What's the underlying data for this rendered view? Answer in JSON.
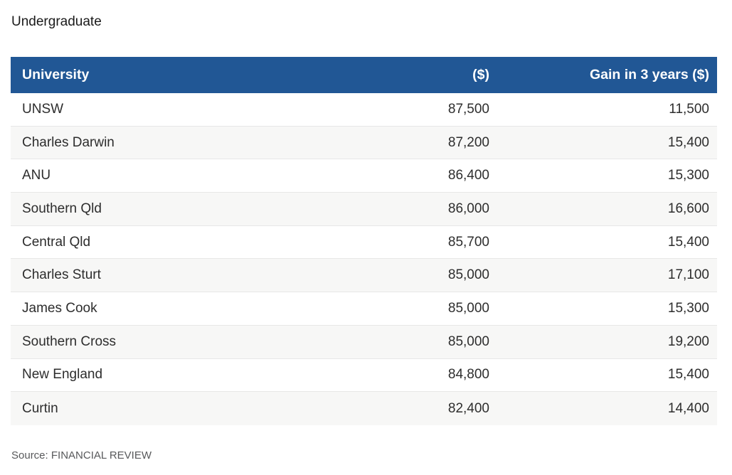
{
  "title": "Undergraduate",
  "source": "Source: FINANCIAL REVIEW",
  "colors": {
    "header_bg": "#215795",
    "header_text": "#ffffff",
    "row_bg": "#ffffff",
    "row_alt_bg": "#f7f7f6",
    "divider": "#e7e7e7",
    "text": "#2d2d2d",
    "title_text": "#1a1a1a",
    "source_text": "#58595b"
  },
  "table": {
    "columns": [
      "University",
      "($)",
      "Gain in 3 years ($)"
    ],
    "rows": [
      {
        "university": "UNSW",
        "salary": "87,500",
        "gain": "11,500"
      },
      {
        "university": "Charles Darwin",
        "salary": "87,200",
        "gain": "15,400"
      },
      {
        "university": "ANU",
        "salary": "86,400",
        "gain": "15,300"
      },
      {
        "university": "Southern Qld",
        "salary": "86,000",
        "gain": "16,600"
      },
      {
        "university": "Central Qld",
        "salary": "85,700",
        "gain": "15,400"
      },
      {
        "university": "Charles Sturt",
        "salary": "85,000",
        "gain": "17,100"
      },
      {
        "university": "James Cook",
        "salary": "85,000",
        "gain": "15,300"
      },
      {
        "university": "Southern Cross",
        "salary": "85,000",
        "gain": "19,200"
      },
      {
        "university": "New England",
        "salary": "84,800",
        "gain": "15,400"
      },
      {
        "university": "Curtin",
        "salary": "82,400",
        "gain": "14,400"
      }
    ]
  },
  "chart_data": {
    "type": "table",
    "title": "Undergraduate",
    "columns": [
      "University",
      "($)",
      "Gain in 3 years ($)"
    ],
    "rows": [
      [
        "UNSW",
        87500,
        11500
      ],
      [
        "Charles Darwin",
        87200,
        15400
      ],
      [
        "ANU",
        86400,
        15300
      ],
      [
        "Southern Qld",
        86000,
        16600
      ],
      [
        "Central Qld",
        85700,
        15400
      ],
      [
        "Charles Sturt",
        85000,
        17100
      ],
      [
        "James Cook",
        85000,
        15300
      ],
      [
        "Southern Cross",
        85000,
        19200
      ],
      [
        "New England",
        84800,
        15400
      ],
      [
        "Curtin",
        82400,
        14400
      ]
    ],
    "source": "Source: FINANCIAL REVIEW",
    "header_style": "blue banded header, zebra-striped rows"
  }
}
